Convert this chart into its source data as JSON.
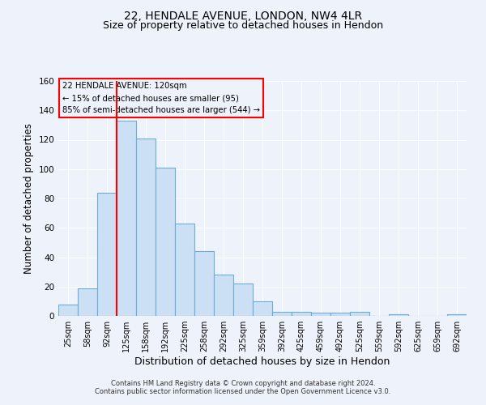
{
  "title": "22, HENDALE AVENUE, LONDON, NW4 4LR",
  "subtitle": "Size of property relative to detached houses in Hendon",
  "xlabel": "Distribution of detached houses by size in Hendon",
  "ylabel": "Number of detached properties",
  "bin_labels": [
    "25sqm",
    "58sqm",
    "92sqm",
    "125sqm",
    "158sqm",
    "192sqm",
    "225sqm",
    "258sqm",
    "292sqm",
    "325sqm",
    "359sqm",
    "392sqm",
    "425sqm",
    "459sqm",
    "492sqm",
    "525sqm",
    "559sqm",
    "592sqm",
    "625sqm",
    "659sqm",
    "692sqm"
  ],
  "bar_heights": [
    8,
    19,
    84,
    133,
    121,
    101,
    63,
    44,
    28,
    22,
    10,
    3,
    3,
    2,
    2,
    3,
    0,
    1,
    0,
    0,
    1
  ],
  "bar_color": "#cce0f5",
  "bar_edge_color": "#6aaed6",
  "red_line_index": 3,
  "ylim": [
    0,
    160
  ],
  "yticks": [
    0,
    20,
    40,
    60,
    80,
    100,
    120,
    140,
    160
  ],
  "annotation_title": "22 HENDALE AVENUE: 120sqm",
  "annotation_line1": "← 15% of detached houses are smaller (95)",
  "annotation_line2": "85% of semi-detached houses are larger (544) →",
  "footer_line1": "Contains HM Land Registry data © Crown copyright and database right 2024.",
  "footer_line2": "Contains public sector information licensed under the Open Government Licence v3.0.",
  "background_color": "#eef2fa",
  "grid_color": "#ffffff",
  "title_fontsize": 10,
  "subtitle_fontsize": 9
}
